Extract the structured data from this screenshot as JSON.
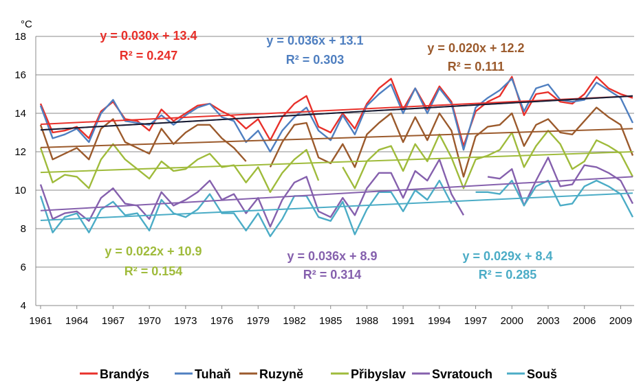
{
  "chart_data": {
    "type": "line",
    "ylabel": "°C",
    "ylim": [
      4,
      18
    ],
    "yticks": [
      4,
      6,
      8,
      10,
      12,
      14,
      16,
      18
    ],
    "xlim": [
      1961,
      2010
    ],
    "xticks": [
      1961,
      1964,
      1967,
      1970,
      1973,
      1976,
      1979,
      1982,
      1985,
      1988,
      1991,
      1994,
      1997,
      2000,
      2003,
      2006,
      2009
    ],
    "grid": "horizontal",
    "legend": "bottom",
    "series": [
      {
        "name": "Brandýs",
        "color": "#e8302a",
        "values": [
          14.5,
          13.0,
          13.1,
          13.3,
          12.7,
          14.1,
          14.6,
          13.7,
          13.6,
          13.1,
          14.2,
          13.6,
          14.0,
          14.4,
          14.5,
          14.1,
          13.8,
          13.2,
          13.7,
          12.6,
          13.8,
          14.5,
          14.9,
          13.3,
          13.0,
          14.0,
          13.2,
          14.5,
          15.3,
          15.8,
          14.2,
          15.3,
          14.2,
          15.4,
          14.6,
          12.3,
          14.1,
          14.6,
          14.9,
          15.9,
          13.9,
          15.0,
          15.1,
          14.6,
          14.5,
          15.0,
          15.9,
          15.3,
          15.0,
          14.8
        ],
        "trend": {
          "slope": 0.03,
          "intercept": 13.4,
          "equation": "y = 0.030x + 13.4",
          "r2": "R² = 0.247"
        }
      },
      {
        "name": "Tuhaň",
        "color": "#4f7fc0",
        "values": [
          14.4,
          12.7,
          12.9,
          13.2,
          12.5,
          14.0,
          14.7,
          13.6,
          13.5,
          13.4,
          13.9,
          13.4,
          13.9,
          14.3,
          14.5,
          13.8,
          13.6,
          12.5,
          13.1,
          12.0,
          13.1,
          13.8,
          14.3,
          13.1,
          12.6,
          13.9,
          12.9,
          14.4,
          15.0,
          15.5,
          14.0,
          15.3,
          14.0,
          15.3,
          14.5,
          12.1,
          14.3,
          14.8,
          15.2,
          15.8,
          14.1,
          15.3,
          15.5,
          14.7,
          14.6,
          14.7,
          15.6,
          15.2,
          14.8,
          13.5
        ],
        "trend": {
          "slope": 0.036,
          "intercept": 13.1,
          "equation": "y = 0.036x + 13.1",
          "r2": "R² = 0.303"
        }
      },
      {
        "name": "Ruzyně",
        "color": "#9b5a2c",
        "values": [
          13.4,
          11.6,
          11.9,
          12.2,
          11.6,
          13.2,
          13.7,
          12.5,
          12.2,
          11.9,
          13.2,
          12.4,
          13.0,
          13.4,
          13.4,
          12.7,
          12.2,
          11.5,
          null,
          11.2,
          12.5,
          13.4,
          13.5,
          11.7,
          11.4,
          12.4,
          11.2,
          12.9,
          13.5,
          14.0,
          12.5,
          13.8,
          12.6,
          14.0,
          13.1,
          10.7,
          12.8,
          13.3,
          13.4,
          14.0,
          12.3,
          13.4,
          13.7,
          13.0,
          12.9,
          13.6,
          14.3,
          13.8,
          13.4,
          11.8
        ],
        "trend": {
          "slope": 0.02,
          "intercept": 12.2,
          "equation": "y = 0.020x + 12.2",
          "r2": "R² = 0.111"
        }
      },
      {
        "name": "Přibyslav",
        "color": "#9fbb3b",
        "values": [
          12.2,
          10.4,
          10.8,
          10.7,
          10.1,
          11.6,
          12.4,
          11.6,
          11.1,
          10.6,
          11.5,
          11.0,
          11.1,
          11.6,
          11.9,
          11.2,
          11.3,
          10.4,
          11.2,
          9.9,
          10.9,
          11.6,
          12.1,
          10.5,
          null,
          11.2,
          10.1,
          11.5,
          12.1,
          12.3,
          11.0,
          12.4,
          11.5,
          12.9,
          11.7,
          10.1,
          11.6,
          11.8,
          12.1,
          13.0,
          11.2,
          12.3,
          13.1,
          12.4,
          11.1,
          11.5,
          12.6,
          12.3,
          11.9,
          10.7
        ],
        "trend": {
          "slope": 0.022,
          "intercept": 10.9,
          "equation": "y = 0.022x + 10.9",
          "r2": "R² = 0.154"
        }
      },
      {
        "name": "Svratouch",
        "color": "#8560ad",
        "values": [
          10.3,
          8.5,
          8.8,
          8.9,
          8.4,
          9.6,
          10.1,
          9.3,
          9.2,
          8.5,
          9.9,
          9.2,
          9.5,
          9.9,
          10.5,
          9.5,
          9.8,
          8.8,
          9.6,
          8.1,
          9.5,
          10.4,
          10.7,
          8.9,
          8.6,
          9.6,
          8.7,
          10.1,
          10.9,
          10.9,
          9.6,
          11.0,
          10.5,
          11.6,
          9.8,
          8.7,
          null,
          10.7,
          10.6,
          11.1,
          9.2,
          10.5,
          11.7,
          10.2,
          10.3,
          11.3,
          11.2,
          10.9,
          10.5,
          9.3
        ],
        "trend": {
          "slope": 0.036,
          "intercept": 8.9,
          "equation": "y = 0.036x + 8.9",
          "r2": "R² = 0.314"
        }
      },
      {
        "name": "Souš",
        "color": "#4bacc6",
        "values": [
          9.7,
          7.8,
          8.6,
          8.8,
          7.8,
          9.0,
          9.4,
          8.7,
          8.8,
          7.9,
          9.5,
          8.8,
          8.6,
          9.0,
          9.8,
          8.8,
          8.8,
          7.9,
          8.8,
          7.6,
          8.5,
          9.7,
          9.7,
          8.6,
          8.4,
          9.4,
          7.7,
          9.0,
          9.9,
          9.9,
          8.9,
          10.0,
          9.5,
          10.5,
          9.3,
          null,
          9.9,
          9.9,
          9.8,
          10.5,
          9.2,
          10.2,
          10.5,
          9.2,
          9.3,
          10.2,
          10.5,
          10.2,
          9.8,
          8.6
        ],
        "trend": {
          "slope": 0.029,
          "intercept": 8.4,
          "equation": "y = 0.029x + 8.4",
          "r2": "R² = 0.285"
        }
      }
    ],
    "extra_trend": {
      "slope": 0.036,
      "intercept": 13.1,
      "color": "#1a1a2e"
    },
    "annotation_layout": [
      {
        "series": 0,
        "anchor": "a1"
      },
      {
        "series": 1,
        "anchor": "a2"
      },
      {
        "series": 2,
        "anchor": "a3"
      },
      {
        "series": 3,
        "anchor": "a4"
      },
      {
        "series": 4,
        "anchor": "a5"
      },
      {
        "series": 5,
        "anchor": "a6"
      }
    ]
  }
}
